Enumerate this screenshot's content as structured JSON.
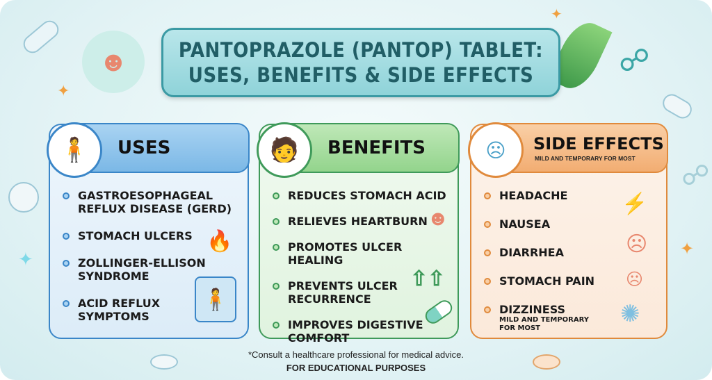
{
  "title": {
    "line1": "PANTOPRAZOLE (PANTOP) TABLET:",
    "line2": "USES, BENEFITS & SIDE EFFECTS"
  },
  "uses": {
    "heading": "USES",
    "items": [
      "GASTROESOPHAGEAL REFLUX DISEASE (GERD)",
      "STOMACH ULCERS",
      "ZOLLINGER-ELLISON SYNDROME",
      "ACID REFLUX SYMPTOMS"
    ],
    "color": "#3a86c8"
  },
  "benefits": {
    "heading": "BENEFITS",
    "items": [
      "REDUCES STOMACH ACID",
      "RELIEVES HEARTBURN",
      "PROMOTES ULCER HEALING",
      "PREVENTS ULCER RECURRENCE",
      "IMPROVES DIGESTIVE COMFORT"
    ],
    "color": "#3f9a5a"
  },
  "side_effects": {
    "heading": "SIDE EFFECTS",
    "subheading": "MILD AND TEMPORARY FOR MOST",
    "items": [
      "HEADACHE",
      "NAUSEA",
      "DIARRHEA",
      "STOMACH PAIN",
      "DIZZINESS"
    ],
    "dizziness_note": "MILD AND TEMPORARY FOR MOST",
    "color": "#e08a3c"
  },
  "footer": {
    "disclaimer": "*Consult a healthcare professional for medical advice.",
    "purpose": "FOR EDUCATIONAL PURPOSES"
  }
}
